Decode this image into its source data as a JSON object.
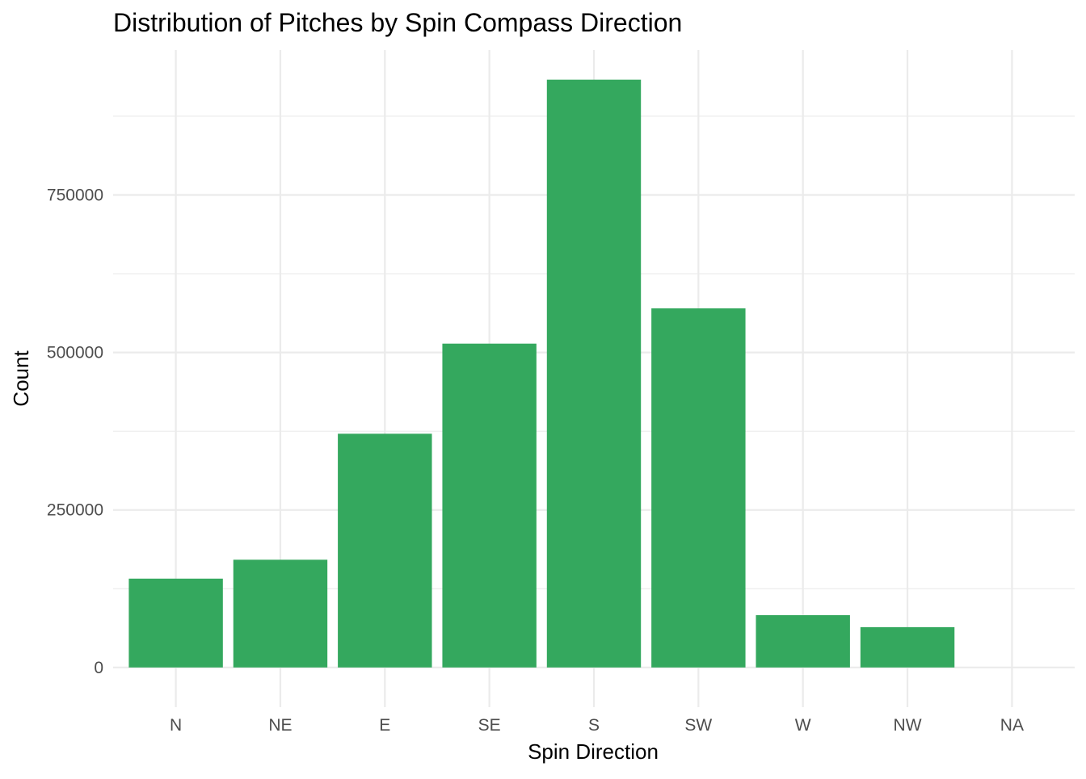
{
  "chart_data": {
    "type": "bar",
    "title": "Distribution of Pitches by Spin Compass Direction",
    "xlabel": "Spin Direction",
    "ylabel": "Count",
    "categories": [
      "N",
      "NE",
      "E",
      "SE",
      "S",
      "SW",
      "W",
      "NW",
      "NA"
    ],
    "values": [
      141000,
      171000,
      371000,
      514000,
      933000,
      570000,
      83000,
      64000,
      0
    ],
    "ylim": [
      -63000,
      980000
    ],
    "y_ticks": [
      0,
      250000,
      500000,
      750000
    ],
    "y_tick_labels": [
      "0",
      "250000",
      "500000",
      "750000"
    ],
    "grid": true,
    "legend": "none",
    "bar_color": "#34a85e",
    "grid_color": "#ebebeb"
  }
}
